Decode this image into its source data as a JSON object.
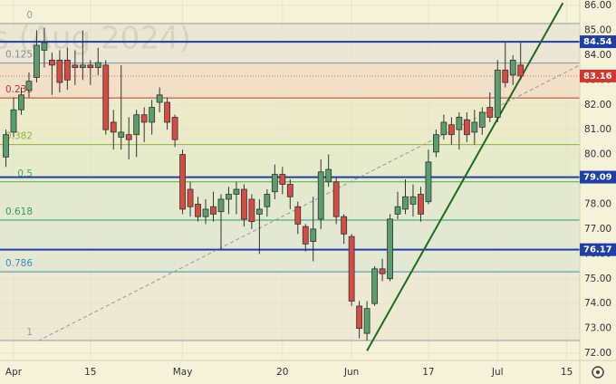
{
  "chart_data": {
    "type": "candlestick",
    "watermark": "s (Aug 2024)",
    "x": [
      -1,
      0,
      1,
      2,
      3,
      4,
      5,
      6,
      7,
      8,
      9,
      10,
      11,
      12,
      13,
      14,
      15,
      16,
      17,
      18,
      19,
      20,
      21,
      22,
      23,
      24,
      25,
      26,
      27,
      28,
      29,
      30,
      31,
      32,
      33,
      34,
      35,
      36,
      37,
      38,
      39,
      40,
      41,
      42,
      43,
      44,
      45,
      46,
      47,
      48,
      49,
      50,
      51,
      52,
      53,
      54,
      55,
      56,
      57,
      58,
      59,
      60,
      61,
      62,
      63,
      64,
      65,
      66
    ],
    "open": [
      79.9,
      80.9,
      81.8,
      82.6,
      83.1,
      84.2,
      83.8,
      83.8,
      83.8,
      83.6,
      83.5,
      83.6,
      83.5,
      83.6,
      81.3,
      80.7,
      80.8,
      80.8,
      81.6,
      81.3,
      82.1,
      82.1,
      81.5,
      80.0,
      78.6,
      78.0,
      77.5,
      77.9,
      77.7,
      78.2,
      78.4,
      78.6,
      78.2,
      77.6,
      77.9,
      78.5,
      79.2,
      78.8,
      77.9,
      77.1,
      76.5,
      77.4,
      78.9,
      78.9,
      77.5,
      76.7,
      73.9,
      72.8,
      74.0,
      75.4,
      75.0,
      77.6,
      77.8,
      78.0,
      78.4,
      78.1,
      80.1,
      80.8,
      81.2,
      81.0,
      81.4,
      80.9,
      81.1,
      81.9,
      81.5,
      83.4,
      83.2,
      83.6
    ],
    "high": [
      81.0,
      82.3,
      82.7,
      83.3,
      85.0,
      85.1,
      84.1,
      84.2,
      84.3,
      84.2,
      85.0,
      83.8,
      84.3,
      83.8,
      81.8,
      83.6,
      81.5,
      81.8,
      81.9,
      82.2,
      82.7,
      82.3,
      81.6,
      80.2,
      78.9,
      78.3,
      78.2,
      78.5,
      78.4,
      78.7,
      78.9,
      78.8,
      78.4,
      78.2,
      78.6,
      79.6,
      79.5,
      79.0,
      78.1,
      77.2,
      78.3,
      79.8,
      80.0,
      79.1,
      77.6,
      76.8,
      74.1,
      74.1,
      75.5,
      75.8,
      77.6,
      78.5,
      79.0,
      78.8,
      78.7,
      80.2,
      81.0,
      81.6,
      81.5,
      81.7,
      81.7,
      81.8,
      81.9,
      82.5,
      83.8,
      84.5,
      84.0,
      84.5
    ],
    "low": [
      79.5,
      80.7,
      81.6,
      82.3,
      82.9,
      83.5,
      82.4,
      82.5,
      82.6,
      82.8,
      83.0,
      82.8,
      83.2,
      80.8,
      80.2,
      80.2,
      79.8,
      79.9,
      80.5,
      80.8,
      81.7,
      81.0,
      80.3,
      77.6,
      77.5,
      77.3,
      77.2,
      77.3,
      76.2,
      77.6,
      77.6,
      77.1,
      77.0,
      76.0,
      77.5,
      78.2,
      78.4,
      77.8,
      76.8,
      76.1,
      75.7,
      77.0,
      78.7,
      77.2,
      76.4,
      73.9,
      72.6,
      72.5,
      73.9,
      74.9,
      74.9,
      77.4,
      77.6,
      77.5,
      77.3,
      78.0,
      79.9,
      80.6,
      80.4,
      80.2,
      80.5,
      80.4,
      80.8,
      81.3,
      81.3,
      82.7,
      82.8,
      83.0
    ],
    "close": [
      80.8,
      81.8,
      82.4,
      82.95,
      84.4,
      84.5,
      83.6,
      82.9,
      83.0,
      83.5,
      83.6,
      83.5,
      83.7,
      81.0,
      80.9,
      80.9,
      80.6,
      81.6,
      81.3,
      81.9,
      82.4,
      81.3,
      80.6,
      77.8,
      77.9,
      77.5,
      77.8,
      77.6,
      78.2,
      78.4,
      78.6,
      77.4,
      77.3,
      77.8,
      78.4,
      79.2,
      78.8,
      78.3,
      77.2,
      76.4,
      77.0,
      79.3,
      79.4,
      77.5,
      76.8,
      74.1,
      73.0,
      73.8,
      75.4,
      75.2,
      77.4,
      77.9,
      78.3,
      78.3,
      77.6,
      79.7,
      80.8,
      81.3,
      80.8,
      81.5,
      80.8,
      81.3,
      81.7,
      81.5,
      83.4,
      82.9,
      83.8,
      83.16
    ],
    "up_color": "#5a9e6e",
    "down_color": "#d64b43",
    "xlim": [
      -1.77,
      73.7
    ],
    "ylim": [
      71.71,
      86.22
    ],
    "xticks": [
      {
        "value": 0,
        "label": "Apr"
      },
      {
        "value": 10,
        "label": "15"
      },
      {
        "value": 22,
        "label": "May"
      },
      {
        "value": 35,
        "label": "20"
      },
      {
        "value": 44,
        "label": "Jun"
      },
      {
        "value": 54,
        "label": "17"
      },
      {
        "value": 63,
        "label": "Jul"
      },
      {
        "value": 72,
        "label": "15"
      }
    ],
    "yticks": [
      {
        "value": 72,
        "label": "72.00"
      },
      {
        "value": 73,
        "label": "73.00"
      },
      {
        "value": 74,
        "label": "74.00"
      },
      {
        "value": 75,
        "label": "75.00"
      },
      {
        "value": 76,
        "label": "76.00"
      },
      {
        "value": 77,
        "label": "77.00"
      },
      {
        "value": 78,
        "label": "78.00"
      },
      {
        "value": 79,
        "label": "79.00"
      },
      {
        "value": 80,
        "label": "80.00"
      },
      {
        "value": 81,
        "label": "81.00"
      },
      {
        "value": 82,
        "label": "82.00"
      },
      {
        "value": 83,
        "label": "83.00"
      },
      {
        "value": 84,
        "label": "84.00"
      },
      {
        "value": 85,
        "label": "85.00"
      },
      {
        "value": 86,
        "label": "86.00"
      }
    ],
    "grid": true,
    "fib_levels": [
      {
        "label": "0",
        "value": 85.27,
        "color": "#9a9a9a"
      },
      {
        "label": "0.125",
        "value": 83.68,
        "color": "#7d8fa3"
      },
      {
        "label": "0.236",
        "value": 82.28,
        "color": "#c0392b"
      },
      {
        "label": "0.382",
        "value": 80.4,
        "color": "#8fb339"
      },
      {
        "label": "0.5",
        "value": 78.9,
        "color": "#4caf50"
      },
      {
        "label": "0.618",
        "value": 77.36,
        "color": "#2e9e6a"
      },
      {
        "label": "0.786",
        "value": 75.28,
        "color": "#3a8fb0"
      },
      {
        "label": "1",
        "value": 72.51,
        "color": "#9a9a9a"
      }
    ],
    "hlines": [
      {
        "value": 84.54,
        "color": "#1f3fa8"
      },
      {
        "value": 79.09,
        "color": "#1f3fa8"
      },
      {
        "value": 76.17,
        "color": "#1f3fa8"
      }
    ],
    "last_price": {
      "value": 83.16,
      "color": "#d9342b"
    },
    "trendlines": [
      {
        "x": [
          46,
          71.5
        ],
        "y": [
          72.1,
          86.1
        ],
        "color": "#1e6b1e",
        "dash": false
      },
      {
        "x": [
          3.2,
          73.7
        ],
        "y": [
          72.5,
          83.6
        ],
        "color": "#9a9a9a",
        "dash": true
      }
    ]
  }
}
